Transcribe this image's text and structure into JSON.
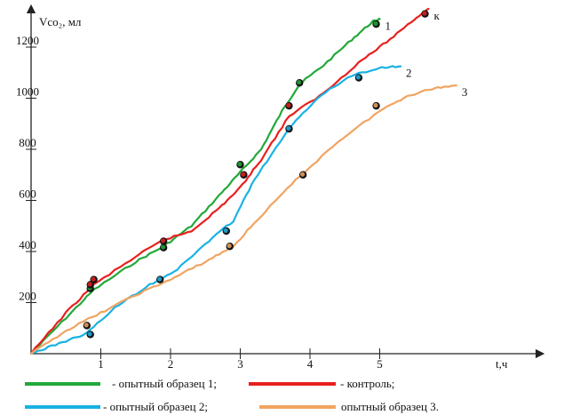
{
  "chart_data": {
    "type": "line",
    "ylabel": "Vco₂, мл",
    "xlabel": "t,ч",
    "xlim": [
      0,
      7
    ],
    "ylim": [
      0,
      1350
    ],
    "x_ticks": [
      "1",
      "2",
      "3",
      "4",
      "5"
    ],
    "y_ticks": [
      "200",
      "400",
      "600",
      "800",
      "1000",
      "1200"
    ],
    "grid": false,
    "legend": "bottom",
    "series": [
      {
        "tag": "1",
        "legend_label": "- опытный образец 1;",
        "color": "#22a83a",
        "points": [
          [
            0,
            0
          ],
          [
            0.5,
            140
          ],
          [
            0.9,
            250
          ],
          [
            1.5,
            360
          ],
          [
            1.9,
            420
          ],
          [
            2.3,
            500
          ],
          [
            2.7,
            620
          ],
          [
            3.0,
            710
          ],
          [
            3.3,
            800
          ],
          [
            3.6,
            950
          ],
          [
            3.85,
            1055
          ],
          [
            4.2,
            1130
          ],
          [
            4.6,
            1230
          ],
          [
            4.9,
            1300
          ],
          [
            5.0,
            1310
          ]
        ],
        "markers": [
          [
            0.85,
            255
          ],
          [
            1.9,
            415
          ],
          [
            3.0,
            740
          ],
          [
            3.85,
            1060
          ],
          [
            4.95,
            1290
          ]
        ]
      },
      {
        "tag": "к",
        "legend_label": "- контроль;",
        "color": "#e8201e",
        "points": [
          [
            0,
            0
          ],
          [
            0.5,
            160
          ],
          [
            0.9,
            270
          ],
          [
            1.5,
            380
          ],
          [
            1.9,
            445
          ],
          [
            2.3,
            480
          ],
          [
            2.7,
            570
          ],
          [
            3.0,
            650
          ],
          [
            3.3,
            760
          ],
          [
            3.7,
            930
          ],
          [
            4.2,
            1020
          ],
          [
            4.7,
            1140
          ],
          [
            5.1,
            1220
          ],
          [
            5.5,
            1310
          ],
          [
            5.7,
            1350
          ]
        ],
        "markers": [
          [
            0.9,
            290
          ],
          [
            0.85,
            270
          ],
          [
            1.9,
            440
          ],
          [
            3.05,
            700
          ],
          [
            3.7,
            970
          ],
          [
            5.65,
            1330
          ]
        ]
      },
      {
        "tag": "2",
        "legend_label": "- опытный образец 2;",
        "color": "#1ab2e4",
        "points": [
          [
            0,
            0
          ],
          [
            0.4,
            40
          ],
          [
            0.8,
            80
          ],
          [
            1.2,
            180
          ],
          [
            1.7,
            270
          ],
          [
            2.1,
            330
          ],
          [
            2.5,
            430
          ],
          [
            2.9,
            520
          ],
          [
            3.2,
            680
          ],
          [
            3.7,
            880
          ],
          [
            4.1,
            1000
          ],
          [
            4.6,
            1090
          ],
          [
            5.0,
            1120
          ],
          [
            5.3,
            1125
          ]
        ],
        "markers": [
          [
            0.85,
            75
          ],
          [
            1.85,
            290
          ],
          [
            2.8,
            480
          ],
          [
            3.7,
            880
          ],
          [
            4.7,
            1080
          ]
        ]
      },
      {
        "tag": "3",
        "legend_label": "опытный образец 3.",
        "color": "#f0a461",
        "points": [
          [
            0,
            0
          ],
          [
            0.5,
            90
          ],
          [
            1.0,
            160
          ],
          [
            1.5,
            230
          ],
          [
            2.0,
            290
          ],
          [
            2.5,
            360
          ],
          [
            2.9,
            420
          ],
          [
            3.3,
            540
          ],
          [
            3.8,
            680
          ],
          [
            4.4,
            830
          ],
          [
            5.0,
            950
          ],
          [
            5.4,
            1010
          ],
          [
            5.8,
            1040
          ],
          [
            6.1,
            1050
          ]
        ],
        "markers": [
          [
            0.8,
            110
          ],
          [
            2.85,
            420
          ],
          [
            3.9,
            700
          ],
          [
            4.95,
            970
          ]
        ]
      }
    ]
  }
}
